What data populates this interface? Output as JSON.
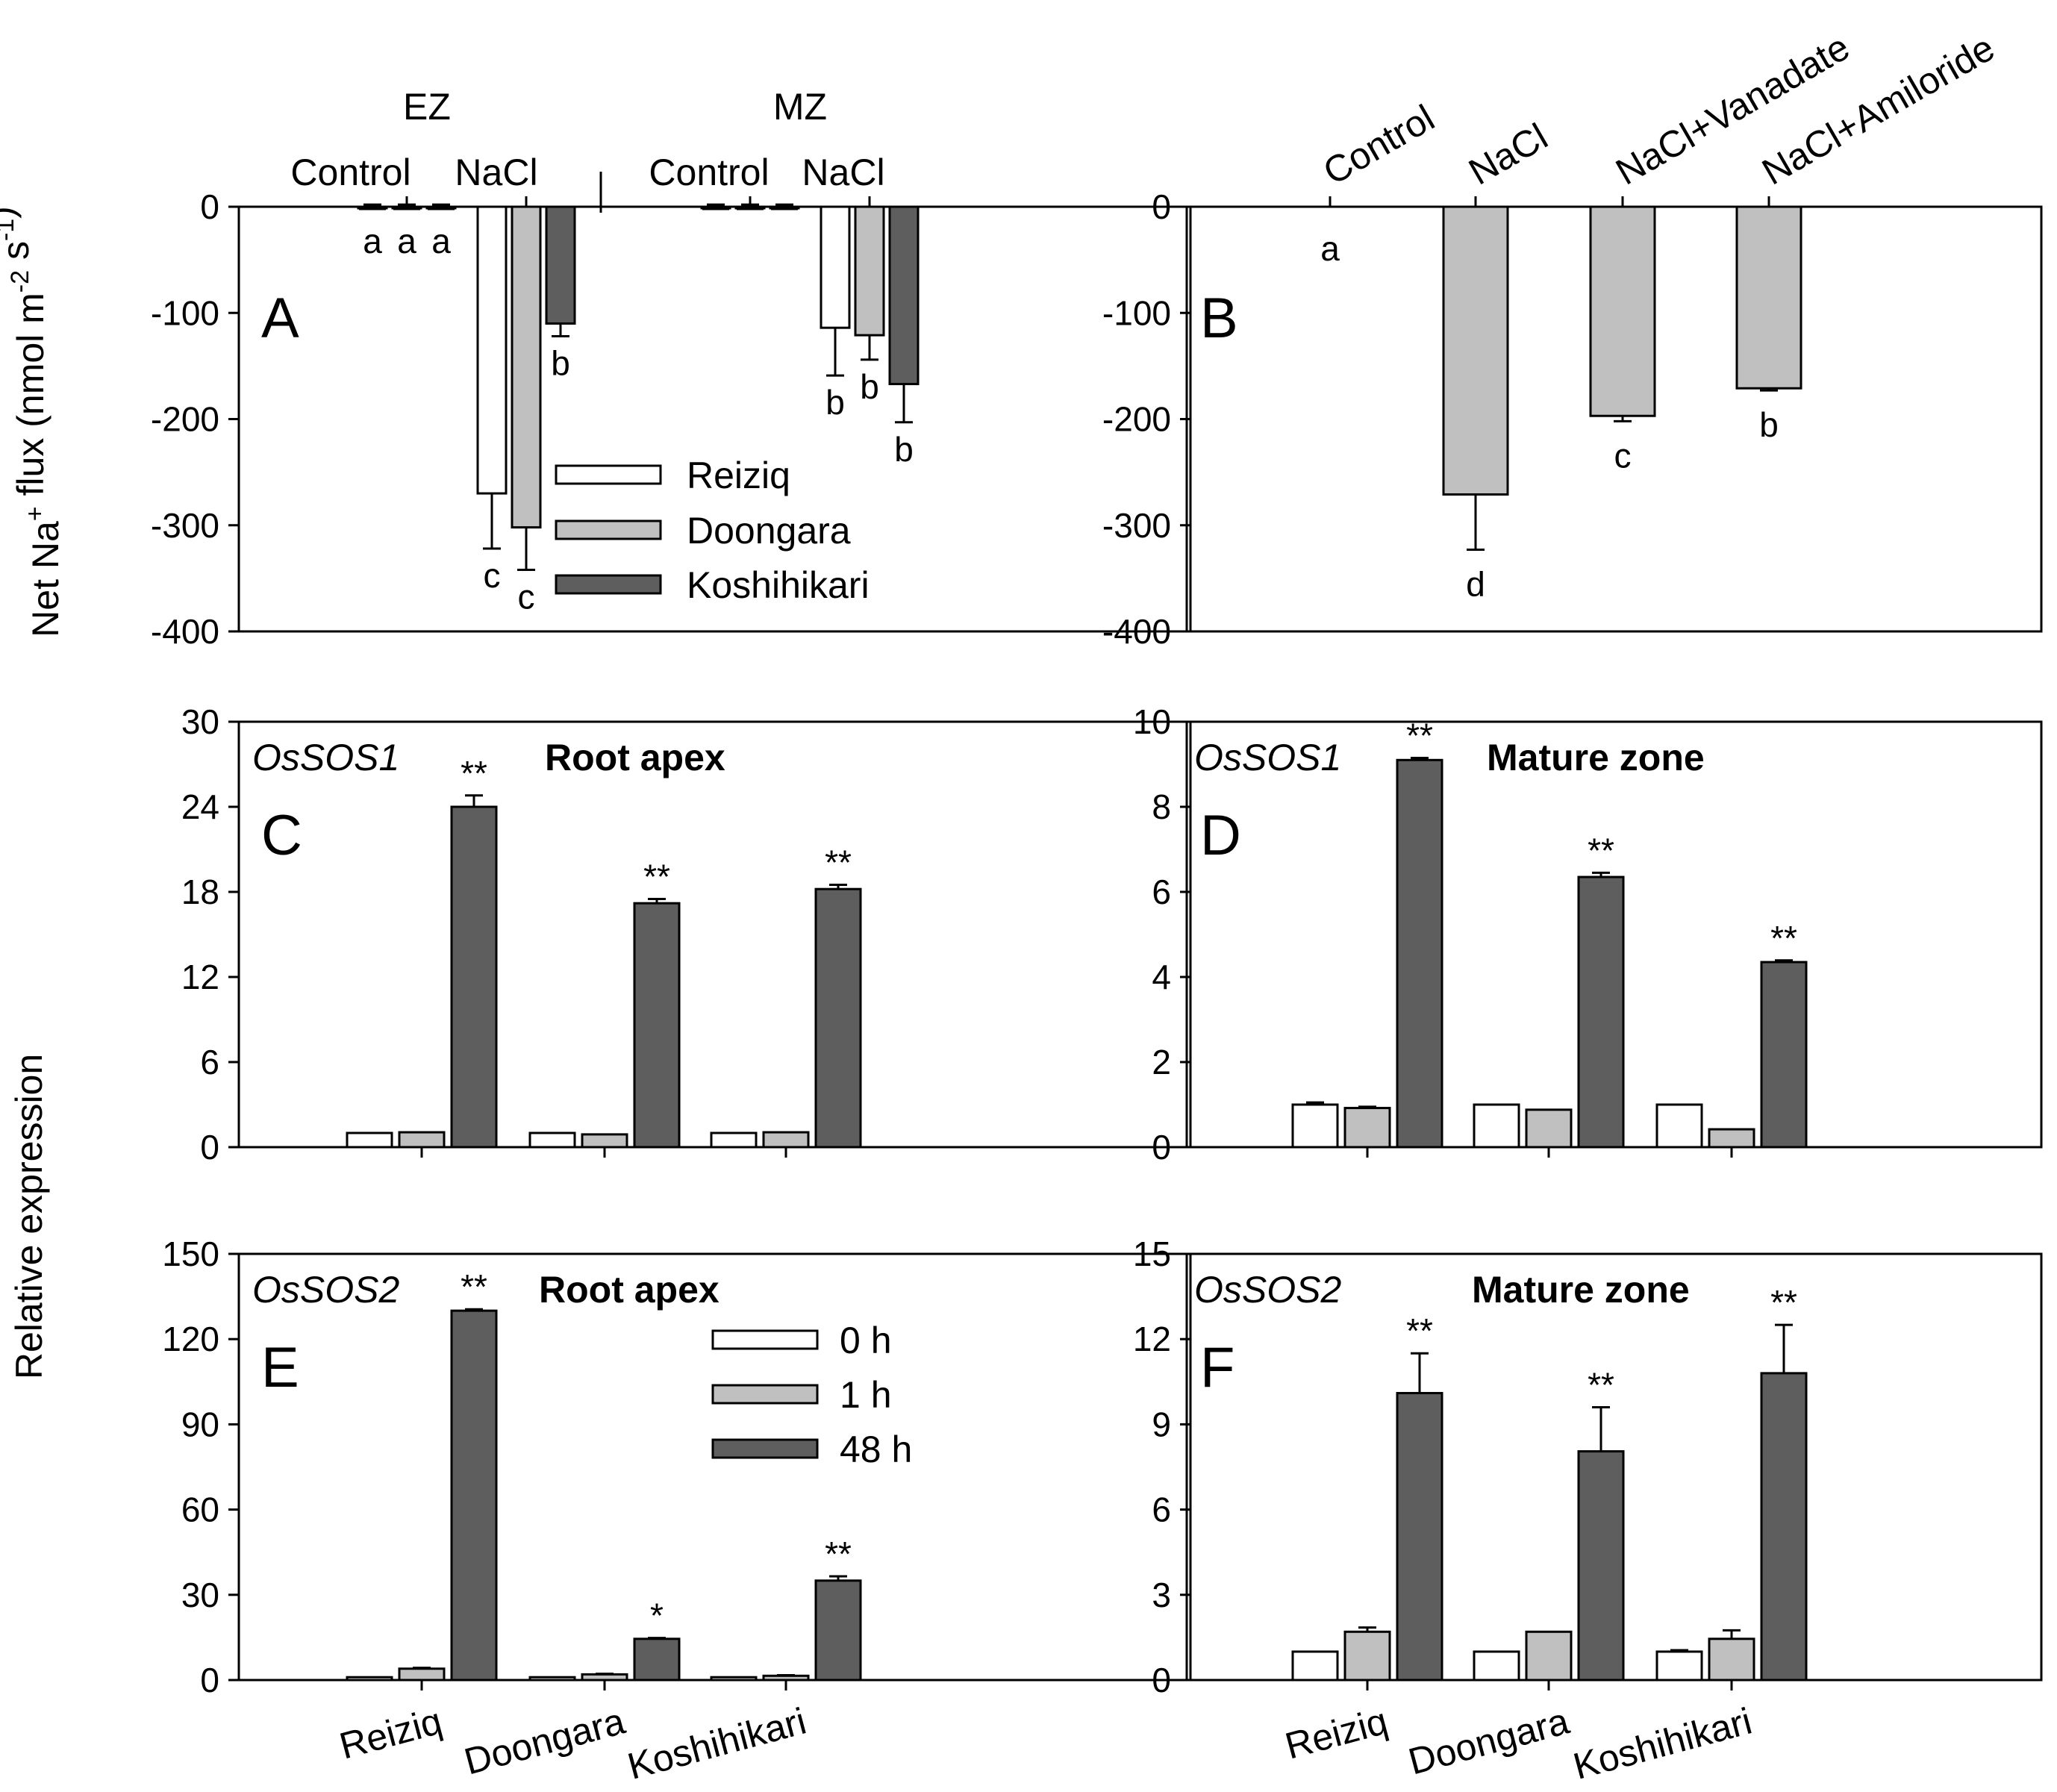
{
  "colors": {
    "s0": "#ffffff",
    "s1": "#c0c0c0",
    "s2": "#5e5e5e"
  },
  "flux_ylabel": "Net Na+ flux (nmol m-2 s-1)",
  "flux_ylabel_parts": {
    "p1": "Net Na",
    "sup1": "+",
    "p2": " flux (nmol m",
    "sup2": "-2",
    "p3": " s",
    "sup3": "-1",
    "p4": ")"
  },
  "expr_ylabel": "Relative expression",
  "chart_data": [
    {
      "panel": "A",
      "type": "bar",
      "ylim": [
        -400,
        0
      ],
      "yticks": [
        0,
        -100,
        -200,
        -300,
        -400
      ],
      "group_labels": [
        "EZ",
        "MZ"
      ],
      "categories": [
        "Control",
        "NaCl",
        "Control",
        "NaCl"
      ],
      "series": [
        {
          "name": "Reiziq",
          "values": [
            0,
            -270,
            0,
            -114
          ],
          "errors": [
            2,
            52,
            2,
            45
          ]
        },
        {
          "name": "Doongara",
          "values": [
            0,
            -302,
            0,
            -121
          ],
          "errors": [
            2,
            40,
            2,
            23
          ]
        },
        {
          "name": "Koshihikari",
          "values": [
            0,
            -110,
            0,
            -167
          ],
          "errors": [
            2,
            12,
            2,
            36
          ]
        }
      ],
      "annotations": [
        [
          "a",
          "c",
          "",
          "b"
        ],
        [
          "a",
          "c",
          "",
          "b"
        ],
        [
          "a",
          "b",
          "",
          "b"
        ]
      ],
      "legend": [
        "Reiziq",
        "Doongara",
        "Koshihikari"
      ]
    },
    {
      "panel": "B",
      "type": "bar",
      "ylim": [
        -400,
        0
      ],
      "yticks": [
        0,
        -100,
        -200,
        -300,
        -400
      ],
      "categories": [
        "Control",
        "NaCl",
        "NaCl+Vanadate",
        "NaCl+Amiloride"
      ],
      "values": [
        0,
        -271,
        -197,
        -171
      ],
      "errors": [
        0,
        52,
        5,
        2
      ],
      "annotations": [
        "a",
        "d",
        "c",
        "b"
      ]
    },
    {
      "panel": "C",
      "type": "bar",
      "gene": "OsSOS1",
      "zone": "Root apex",
      "ylim": [
        0,
        30
      ],
      "yticks": [
        0,
        6,
        12,
        18,
        24,
        30
      ],
      "categories": [
        "Reiziq",
        "Doongara",
        "Koshihikari"
      ],
      "series": [
        {
          "name": "0 h",
          "values": [
            1.0,
            1.0,
            1.0
          ],
          "errors": [
            0,
            0,
            0
          ]
        },
        {
          "name": "1 h",
          "values": [
            1.05,
            0.9,
            1.05
          ],
          "errors": [
            0,
            0,
            0
          ]
        },
        {
          "name": "48 h",
          "values": [
            24.0,
            17.2,
            18.2
          ],
          "errors": [
            0.8,
            0.3,
            0.3
          ]
        }
      ],
      "annotations": [
        "**",
        "**",
        "**"
      ]
    },
    {
      "panel": "D",
      "type": "bar",
      "gene": "OsSOS1",
      "zone": "Mature zone",
      "ylim": [
        0,
        10
      ],
      "yticks": [
        0,
        2,
        4,
        6,
        8,
        10
      ],
      "categories": [
        "Reiziq",
        "Doongara",
        "Koshihikari"
      ],
      "series": [
        {
          "name": "0 h",
          "values": [
            1.0,
            1.0,
            1.0
          ],
          "errors": [
            0.05,
            0,
            0
          ]
        },
        {
          "name": "1 h",
          "values": [
            0.92,
            0.88,
            0.42
          ],
          "errors": [
            0.03,
            0,
            0
          ]
        },
        {
          "name": "48 h",
          "values": [
            9.1,
            6.35,
            4.35
          ],
          "errors": [
            0.05,
            0.1,
            0.04
          ]
        }
      ],
      "annotations": [
        "**",
        "**",
        "**"
      ]
    },
    {
      "panel": "E",
      "type": "bar",
      "gene": "OsSOS2",
      "zone": "Root apex",
      "ylim": [
        0,
        150
      ],
      "yticks": [
        0,
        30,
        60,
        90,
        120,
        150
      ],
      "categories": [
        "Reiziq",
        "Doongara",
        "Koshihikari"
      ],
      "series": [
        {
          "name": "0 h",
          "values": [
            1.0,
            1.0,
            1.0
          ],
          "errors": [
            0,
            0,
            0
          ]
        },
        {
          "name": "1 h",
          "values": [
            4.0,
            2.0,
            1.5
          ],
          "errors": [
            0.3,
            0.2,
            0.2
          ]
        },
        {
          "name": "48 h",
          "values": [
            130.0,
            14.5,
            35.0
          ],
          "errors": [
            0.5,
            0.3,
            1.5
          ]
        }
      ],
      "annotations": [
        "**",
        "*",
        "**"
      ],
      "legend": [
        "0 h",
        "1 h",
        "48 h"
      ]
    },
    {
      "panel": "F",
      "type": "bar",
      "gene": "OsSOS2",
      "zone": "Mature zone",
      "ylim": [
        0,
        15
      ],
      "yticks": [
        0,
        3,
        6,
        9,
        12,
        15
      ],
      "categories": [
        "Reiziq",
        "Doongara",
        "Koshihikari"
      ],
      "series": [
        {
          "name": "0 h",
          "values": [
            1.0,
            1.0,
            1.0
          ],
          "errors": [
            0,
            0,
            0.05
          ]
        },
        {
          "name": "1 h",
          "values": [
            1.7,
            1.7,
            1.45
          ],
          "errors": [
            0.15,
            0,
            0.3
          ]
        },
        {
          "name": "48 h",
          "values": [
            10.1,
            8.05,
            10.8
          ],
          "errors": [
            1.4,
            1.55,
            1.7
          ]
        }
      ],
      "annotations": [
        "**",
        "**",
        "**"
      ]
    }
  ]
}
